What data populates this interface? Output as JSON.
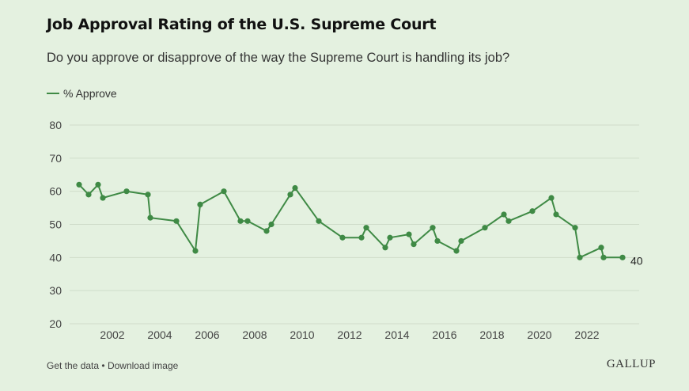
{
  "header": {
    "title": "Job Approval Rating of the U.S. Supreme Court",
    "subtitle": "Do you approve or disapprove of the way the Supreme Court is handling its job?"
  },
  "footer": {
    "get_data": "Get the data",
    "separator": "•",
    "download": "Download image",
    "brand": "GALLUP"
  },
  "colors": {
    "series": "#3f8a45",
    "grid": "#cfdcca",
    "background": "#e4f1e0"
  },
  "chart_data": {
    "type": "line",
    "title": "Job Approval Rating of the U.S. Supreme Court",
    "subtitle": "Do you approve or disapprove of the way the Supreme Court is handling its job?",
    "legend": "top-left",
    "grid": true,
    "ylim": [
      20,
      80
    ],
    "yticks": [
      20,
      30,
      40,
      50,
      60,
      70,
      80
    ],
    "xlim": [
      2000.5,
      2024.0
    ],
    "xticks": [
      2002,
      2004,
      2006,
      2008,
      2010,
      2012,
      2014,
      2016,
      2018,
      2020,
      2022
    ],
    "end_label": "40",
    "series": [
      {
        "name": "% Approve",
        "points": [
          {
            "x": 2000.6,
            "y": 62
          },
          {
            "x": 2001.0,
            "y": 59
          },
          {
            "x": 2001.4,
            "y": 62
          },
          {
            "x": 2001.6,
            "y": 58
          },
          {
            "x": 2002.6,
            "y": 60
          },
          {
            "x": 2003.5,
            "y": 59
          },
          {
            "x": 2003.6,
            "y": 52
          },
          {
            "x": 2004.7,
            "y": 51
          },
          {
            "x": 2005.5,
            "y": 42
          },
          {
            "x": 2005.7,
            "y": 56
          },
          {
            "x": 2006.7,
            "y": 60
          },
          {
            "x": 2007.4,
            "y": 51
          },
          {
            "x": 2007.7,
            "y": 51
          },
          {
            "x": 2008.5,
            "y": 48
          },
          {
            "x": 2008.7,
            "y": 50
          },
          {
            "x": 2009.5,
            "y": 59
          },
          {
            "x": 2009.7,
            "y": 61
          },
          {
            "x": 2010.7,
            "y": 51
          },
          {
            "x": 2011.7,
            "y": 46
          },
          {
            "x": 2012.5,
            "y": 46
          },
          {
            "x": 2012.7,
            "y": 49
          },
          {
            "x": 2013.5,
            "y": 43
          },
          {
            "x": 2013.7,
            "y": 46
          },
          {
            "x": 2014.5,
            "y": 47
          },
          {
            "x": 2014.7,
            "y": 44
          },
          {
            "x": 2015.5,
            "y": 49
          },
          {
            "x": 2015.7,
            "y": 45
          },
          {
            "x": 2016.5,
            "y": 42
          },
          {
            "x": 2016.7,
            "y": 45
          },
          {
            "x": 2017.7,
            "y": 49
          },
          {
            "x": 2018.5,
            "y": 53
          },
          {
            "x": 2018.7,
            "y": 51
          },
          {
            "x": 2019.7,
            "y": 54
          },
          {
            "x": 2020.5,
            "y": 58
          },
          {
            "x": 2020.7,
            "y": 53
          },
          {
            "x": 2021.5,
            "y": 49
          },
          {
            "x": 2021.7,
            "y": 40
          },
          {
            "x": 2022.6,
            "y": 43
          },
          {
            "x": 2022.7,
            "y": 40
          },
          {
            "x": 2023.5,
            "y": 40
          }
        ]
      }
    ]
  }
}
